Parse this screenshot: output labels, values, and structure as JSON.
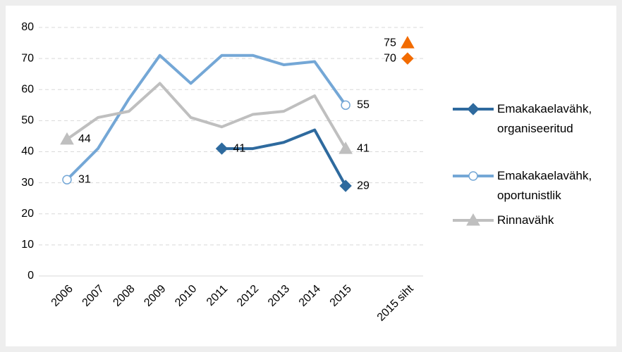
{
  "chart_data": {
    "type": "line",
    "categories": [
      "2006",
      "2007",
      "2008",
      "2009",
      "2010",
      "2011",
      "2012",
      "2013",
      "2014",
      "2015",
      null,
      "2015 siht"
    ],
    "series": [
      {
        "name": "Emakakaelavähk, organiseeritud",
        "color": "#2e6a9e",
        "marker": "diamond",
        "values": [
          null,
          null,
          null,
          null,
          null,
          41,
          41,
          43,
          47,
          29,
          null,
          null
        ],
        "target": 70,
        "target_color": "#f26b00"
      },
      {
        "name": "Emakakaelavähk, oportunistlik",
        "color": "#74a7d6",
        "marker": "circle",
        "values": [
          31,
          41,
          57,
          71,
          62,
          71,
          71,
          68,
          69,
          55,
          null,
          null
        ]
      },
      {
        "name": "Rinnavähk",
        "color": "#bfbfbf",
        "marker": "triangle",
        "values": [
          44,
          51,
          53,
          62,
          51,
          48,
          52,
          53,
          58,
          41,
          null,
          null
        ],
        "target": 75,
        "target_color": "#f26b00"
      }
    ],
    "ylim": [
      0,
      80
    ],
    "yticks": [
      0,
      10,
      20,
      30,
      40,
      50,
      60,
      70,
      80
    ],
    "grid": true,
    "legend": "right"
  }
}
